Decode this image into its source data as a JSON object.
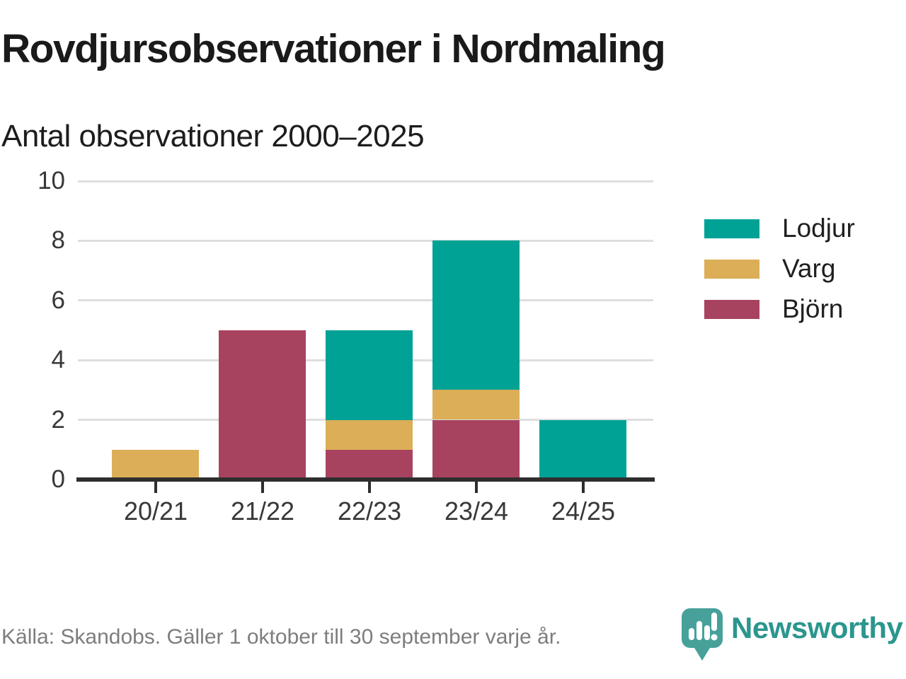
{
  "chart_data": {
    "type": "bar",
    "stacked": true,
    "title": "Rovdjursobservationer i Nordmaling",
    "subtitle": "Antal observationer 2000–2025",
    "categories": [
      "20/21",
      "21/22",
      "22/23",
      "23/24",
      "24/25"
    ],
    "series": [
      {
        "name": "Lodjur",
        "color": "#00a296",
        "values": [
          0,
          0,
          3,
          5,
          2
        ]
      },
      {
        "name": "Varg",
        "color": "#dcae58",
        "values": [
          1,
          0,
          1,
          1,
          0
        ]
      },
      {
        "name": "Björn",
        "color": "#a8435f",
        "values": [
          0,
          5,
          1,
          2,
          0
        ]
      }
    ],
    "totals": [
      1,
      5,
      5,
      8,
      2
    ],
    "ylim": [
      0,
      10
    ],
    "yticks": [
      0,
      2,
      4,
      6,
      8,
      10
    ],
    "grid": "horizontal",
    "legend_position": "right",
    "grid_color": "#dedede",
    "axis_color": "#2e2e2e"
  },
  "footer": {
    "source": "Källa: Skandobs. Gäller 1 oktober till 30 september varje år.",
    "brand": "Newsworthy",
    "brand_color": "#2b968e",
    "brand_icon": "speech-bubble-bar-chart-icon",
    "brand_icon_color": "#47a19a"
  }
}
